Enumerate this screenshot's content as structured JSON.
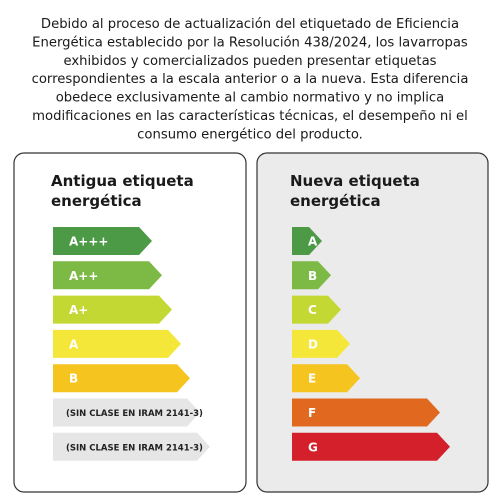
{
  "header": {
    "lines": [
      "Debido al proceso de actualización del etiquetado de Eficiencia",
      "Energética establecido por la Resolución 438/2024, los lavarropas",
      "exhibidos y comercializados pueden presentar etiquetas",
      "correspondientes a la escala anterior o a la nueva. Esta diferencia",
      "obedece exclusivamente al cambio normativo y no implica",
      "modificaciones en las características técnicas, el desempeño ni el",
      "consumo energético del producto."
    ]
  },
  "cards": [
    {
      "title": [
        "Antigua etiqueta",
        "energética"
      ],
      "labels": [
        "A+++",
        "A++",
        "A+",
        "A",
        "B",
        "(SIN CLASE EN IRAM 2141-3)",
        "(SIN CLASE EN IRAM 2141-3)"
      ]
    },
    {
      "title": [
        "Nueva etiqueta",
        "energética"
      ],
      "labels": [
        "A",
        "B",
        "C",
        "D",
        "E",
        "F",
        "G"
      ]
    }
  ]
}
